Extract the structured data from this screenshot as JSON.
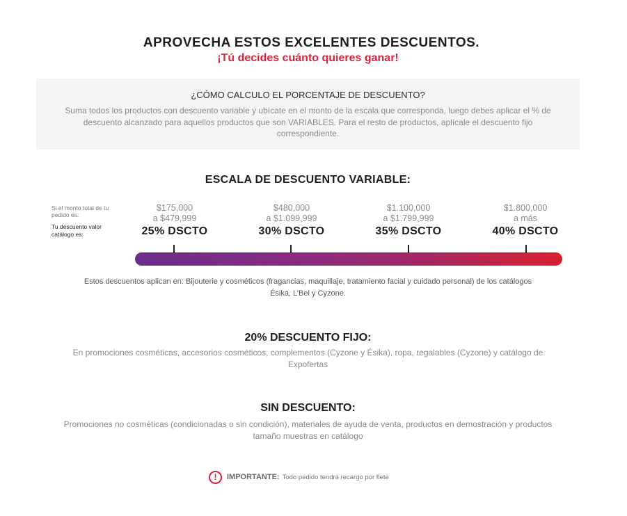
{
  "header": {
    "title": "APROVECHA ESTOS EXCELENTES DESCUENTOS.",
    "subtitle": "¡Tú decides cuánto quieres ganar!"
  },
  "calc": {
    "heading": "¿CÓMO CALCULO EL PORCENTAJE DE DESCUENTO?",
    "text": "Suma todos los productos con descuento variable y ubícate en el monto de la escala que corresponda, luego debes aplicar el % de descuento alcanzado para aquellos productos que son VARIABLES. Para el resto de productos, aplícale el descuento fijo correspondiente."
  },
  "scale": {
    "title": "ESCALA DE DESCUENTO VARIABLE:",
    "label_amount": "Si el monto total de tu pedido es:",
    "label_discount": "Tu descuento valor catálogo es:",
    "tiers": [
      {
        "from": "$175,000",
        "to": "a $479,999",
        "pct": "25% DSCTO"
      },
      {
        "from": "$480,000",
        "to": "a $1.099,999",
        "pct": "30% DSCTO"
      },
      {
        "from": "$1.100,000",
        "to": "a $1.799,999",
        "pct": "35% DSCTO"
      },
      {
        "from": "$1.800,000",
        "to": "a más",
        "pct": "40% DSCTO"
      }
    ],
    "gradient_start": "#6b2d8c",
    "gradient_end": "#d81f2f",
    "applies": "Estos descuentos aplican en: Bijouterie y cosméticos (fragancias, maquillaje, tratamiento facial y cuidado personal) de los catálogos Ésika, L’Bel y Cyzone."
  },
  "fixed": {
    "title": "20% DESCUENTO FIJO:",
    "text": "En promociones cosméticas, accesorios cosméticos, complementos (Cyzone y Ésika), ropa, regalables (Cyzone) y catálogo de Expofertas"
  },
  "none": {
    "title": "SIN DESCUENTO:",
    "text": "Promociones no cosméticas (condicionadas o sin condición), materiales de ayuda de venta, productos en demostración y productos tamaño muestras en catálogo"
  },
  "important": {
    "icon": "exclamation-circle-icon",
    "icon_glyph": "!",
    "label": "IMPORTANTE:",
    "text": "Todo pedido tendrá recargo por flete"
  },
  "colors": {
    "accent": "#d6243b",
    "box_bg": "#f4f4f4"
  }
}
